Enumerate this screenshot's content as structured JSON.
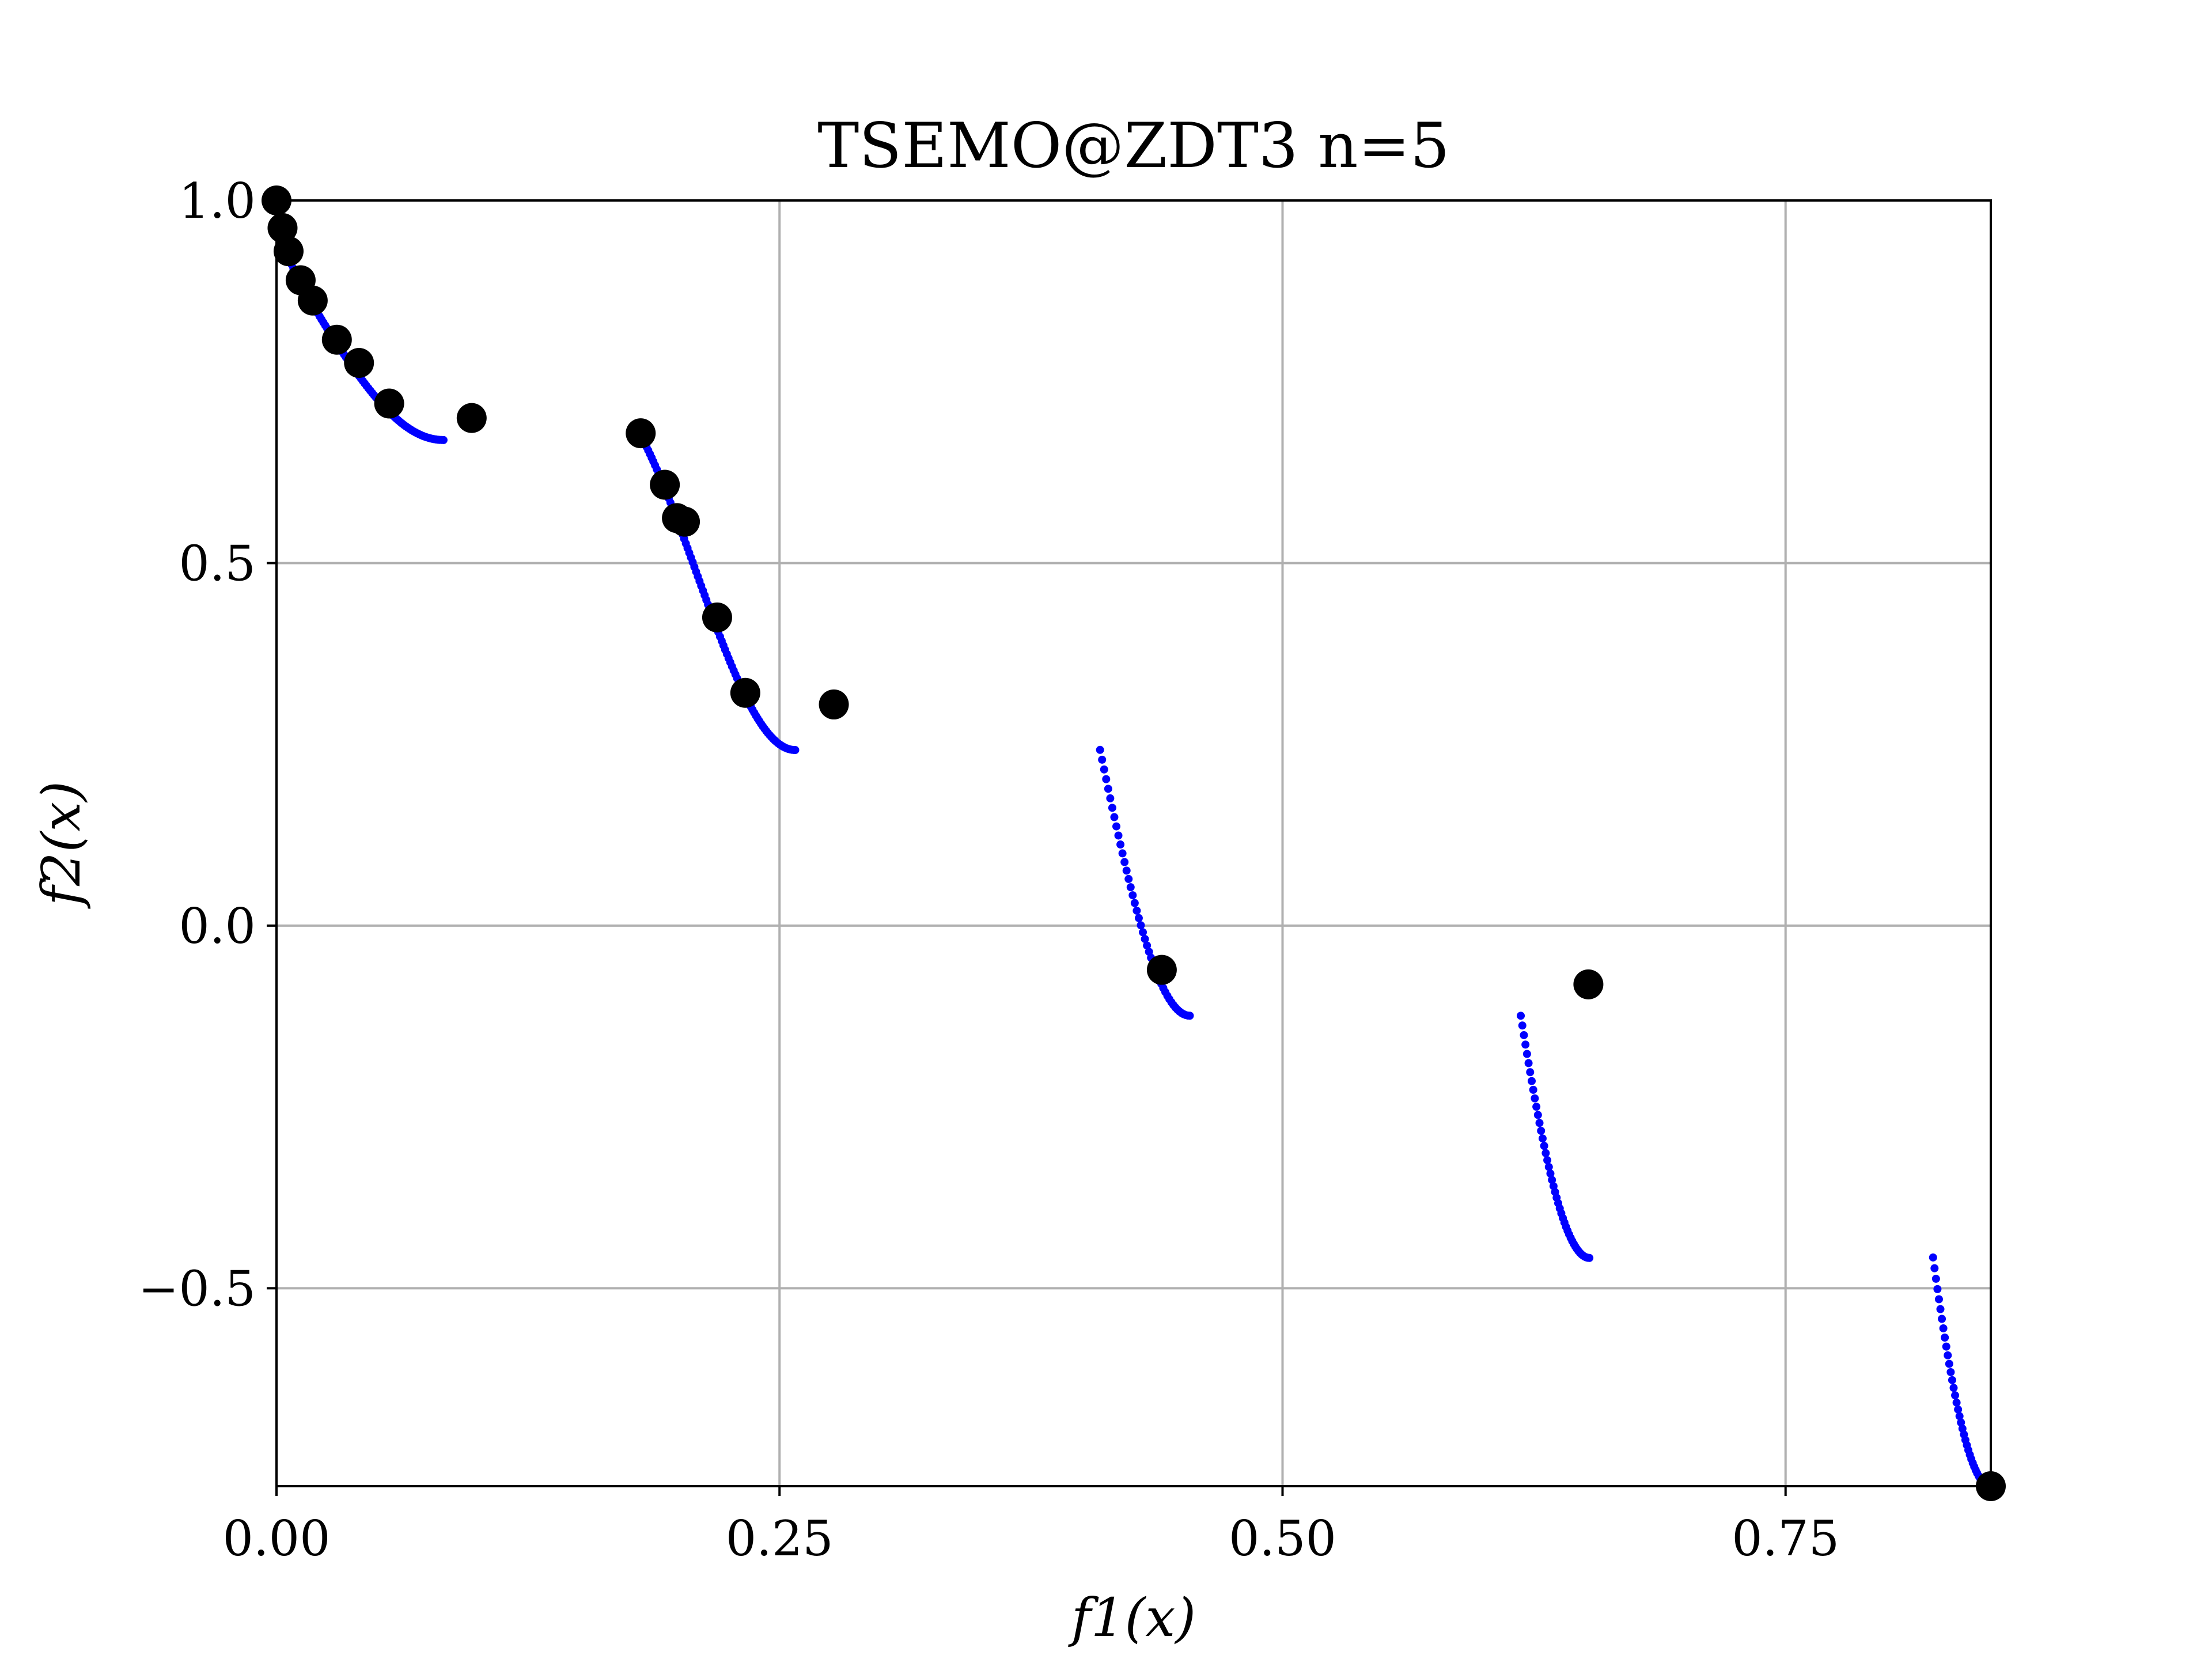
{
  "chart_data": {
    "type": "scatter",
    "title": "TSEMO@ZDT3 n=5",
    "xlabel": "f1(x)",
    "ylabel": "f2(x)",
    "xlim": [
      0.0,
      0.852
    ],
    "ylim": [
      -0.773,
      1.0
    ],
    "grid": true,
    "x_ticks": [
      0.0,
      0.25,
      0.5,
      0.75
    ],
    "x_tick_labels": [
      "0.00",
      "0.25",
      "0.50",
      "0.75"
    ],
    "y_ticks": [
      -0.5,
      0.0,
      0.5,
      1.0
    ],
    "y_tick_labels": [
      "−0.5",
      "0.0",
      "0.5",
      "1.0"
    ],
    "series": [
      {
        "kind": "true-pareto-front",
        "color": "#0000ff",
        "segments": [
          {
            "f1_range": [
              0.0,
              0.083
            ],
            "points": 90
          },
          {
            "f1_range": [
              0.1822,
              0.2578
            ],
            "points": 90
          },
          {
            "f1_range": [
              0.4093,
              0.4539
            ],
            "points": 45
          },
          {
            "f1_range": [
              0.6184,
              0.6525
            ],
            "points": 45
          },
          {
            "f1_range": [
              0.8233,
              0.8518
            ],
            "points": 40
          }
        ]
      },
      {
        "kind": "tsemo-solutions",
        "color": "#000000",
        "x": [
          0.0,
          0.003,
          0.006,
          0.012,
          0.018,
          0.03,
          0.041,
          0.056,
          0.097,
          0.181,
          0.193,
          0.199,
          0.203,
          0.219,
          0.233,
          0.277,
          0.44,
          0.652,
          0.852
        ],
        "y": [
          1.0,
          0.962,
          0.93,
          0.89,
          0.862,
          0.808,
          0.776,
          0.72,
          0.7,
          0.679,
          0.608,
          0.562,
          0.557,
          0.425,
          0.321,
          0.305,
          -0.061,
          -0.081,
          -0.773
        ]
      }
    ]
  }
}
